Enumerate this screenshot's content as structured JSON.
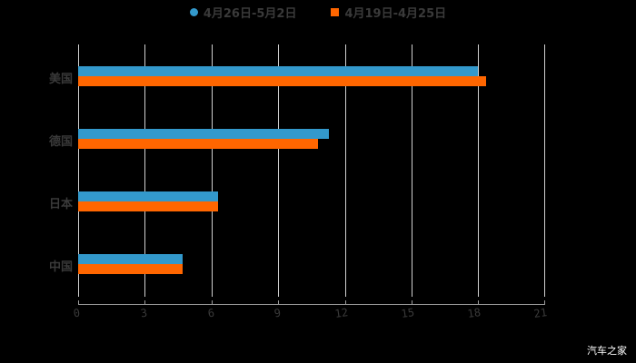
{
  "chart_data": {
    "type": "bar",
    "orientation": "horizontal",
    "title": "",
    "xlabel": "",
    "ylabel": "",
    "categories": [
      "美国",
      "德国",
      "日本",
      "中国"
    ],
    "series": [
      {
        "name": "4月26日-5月2日",
        "color": "#3399cc",
        "values": [
          18.0,
          11.3,
          6.3,
          4.7
        ]
      },
      {
        "name": "4月19日-4月25日",
        "color": "#ff6600",
        "values": [
          18.4,
          10.8,
          6.3,
          4.7
        ]
      }
    ],
    "xlim": [
      0,
      21
    ],
    "xticks": [
      "0",
      "3",
      "6",
      "9",
      "12",
      "15",
      "18",
      "21"
    ],
    "grid": true,
    "legend_position": "top"
  },
  "legend": {
    "series1": "4月26日-5月2日",
    "series2": "4月19日-4月25日"
  },
  "categories": [
    "美国",
    "德国",
    "日本",
    "中国"
  ],
  "ticks": [
    "0",
    "3",
    "6",
    "9",
    "12",
    "15",
    "18",
    "21"
  ],
  "watermark": "汽车之家"
}
